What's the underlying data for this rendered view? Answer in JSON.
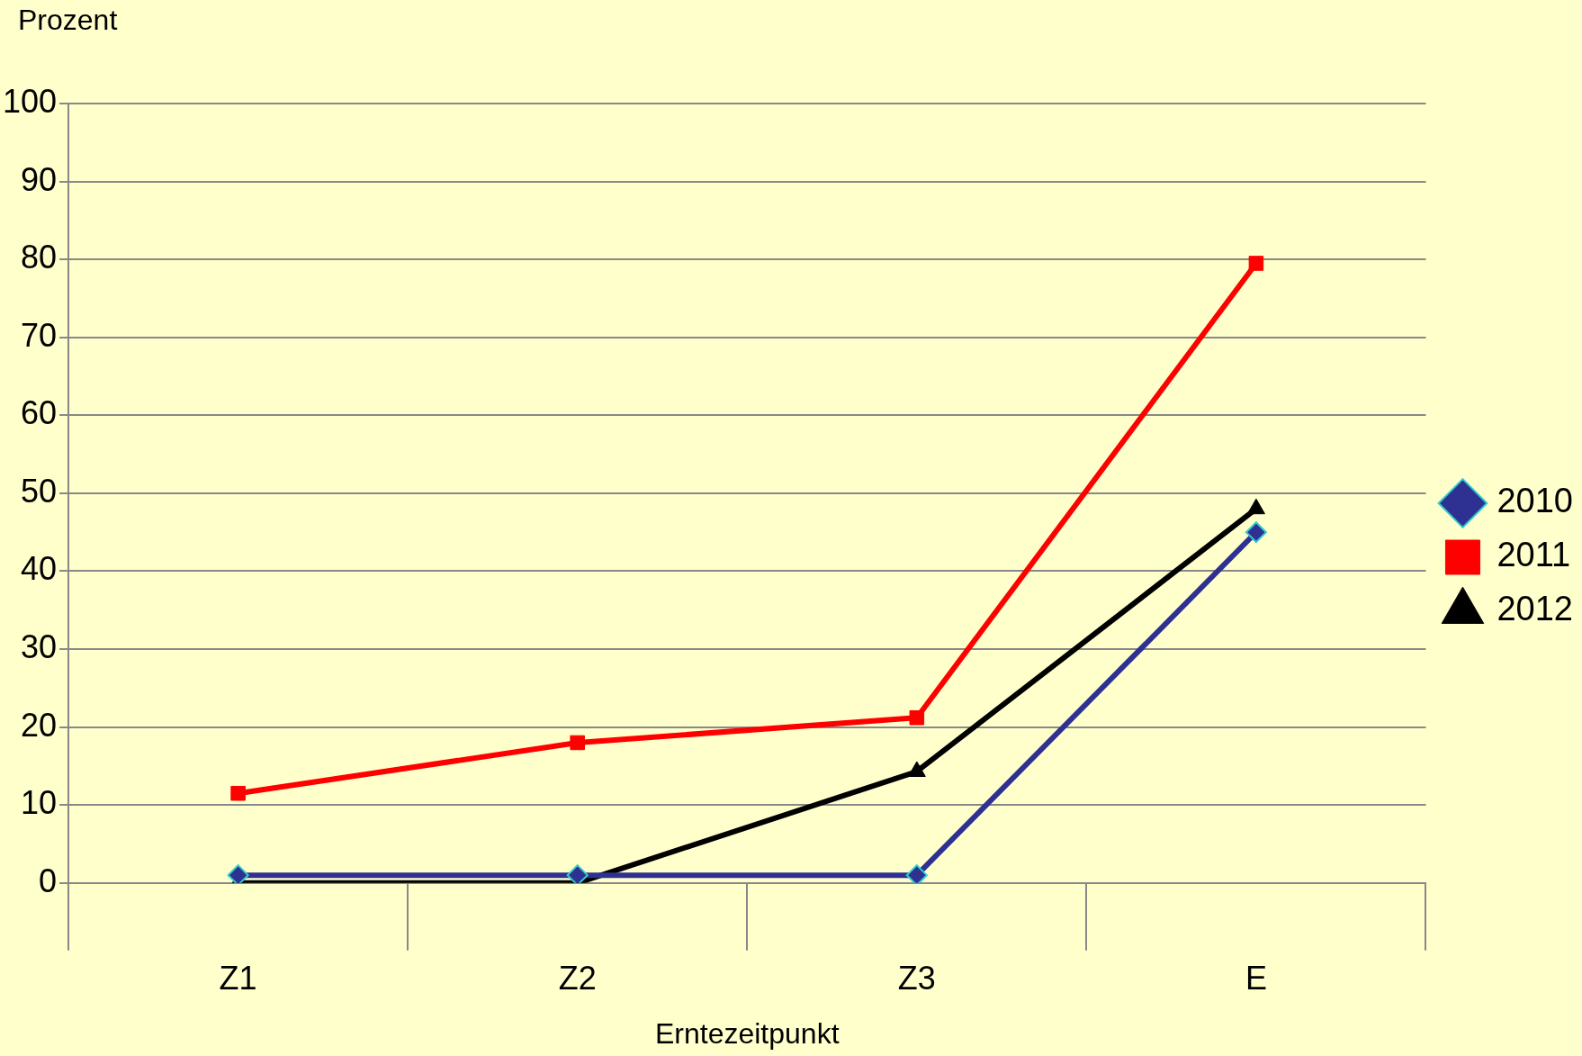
{
  "chart_data": {
    "type": "line",
    "ylabel": "Prozent",
    "xlabel": "Erntezeitpunkt",
    "categories": [
      "Z1",
      "Z2",
      "Z3",
      "E"
    ],
    "series": [
      {
        "name": "2010",
        "color": "#2e3192",
        "marker": "diamond",
        "values": [
          1,
          1,
          1,
          45
        ]
      },
      {
        "name": "2011",
        "color": "#ff0000",
        "marker": "square",
        "values": [
          11.5,
          18,
          21.2,
          79.5
        ]
      },
      {
        "name": "2012",
        "color": "#000000",
        "marker": "triangle",
        "values": [
          0,
          0,
          14.3,
          48
        ]
      }
    ],
    "ylim": [
      0,
      100
    ],
    "yticks": [
      0,
      10,
      20,
      30,
      40,
      50,
      60,
      70,
      80,
      90,
      100
    ],
    "grid": "y",
    "legend": "right"
  }
}
